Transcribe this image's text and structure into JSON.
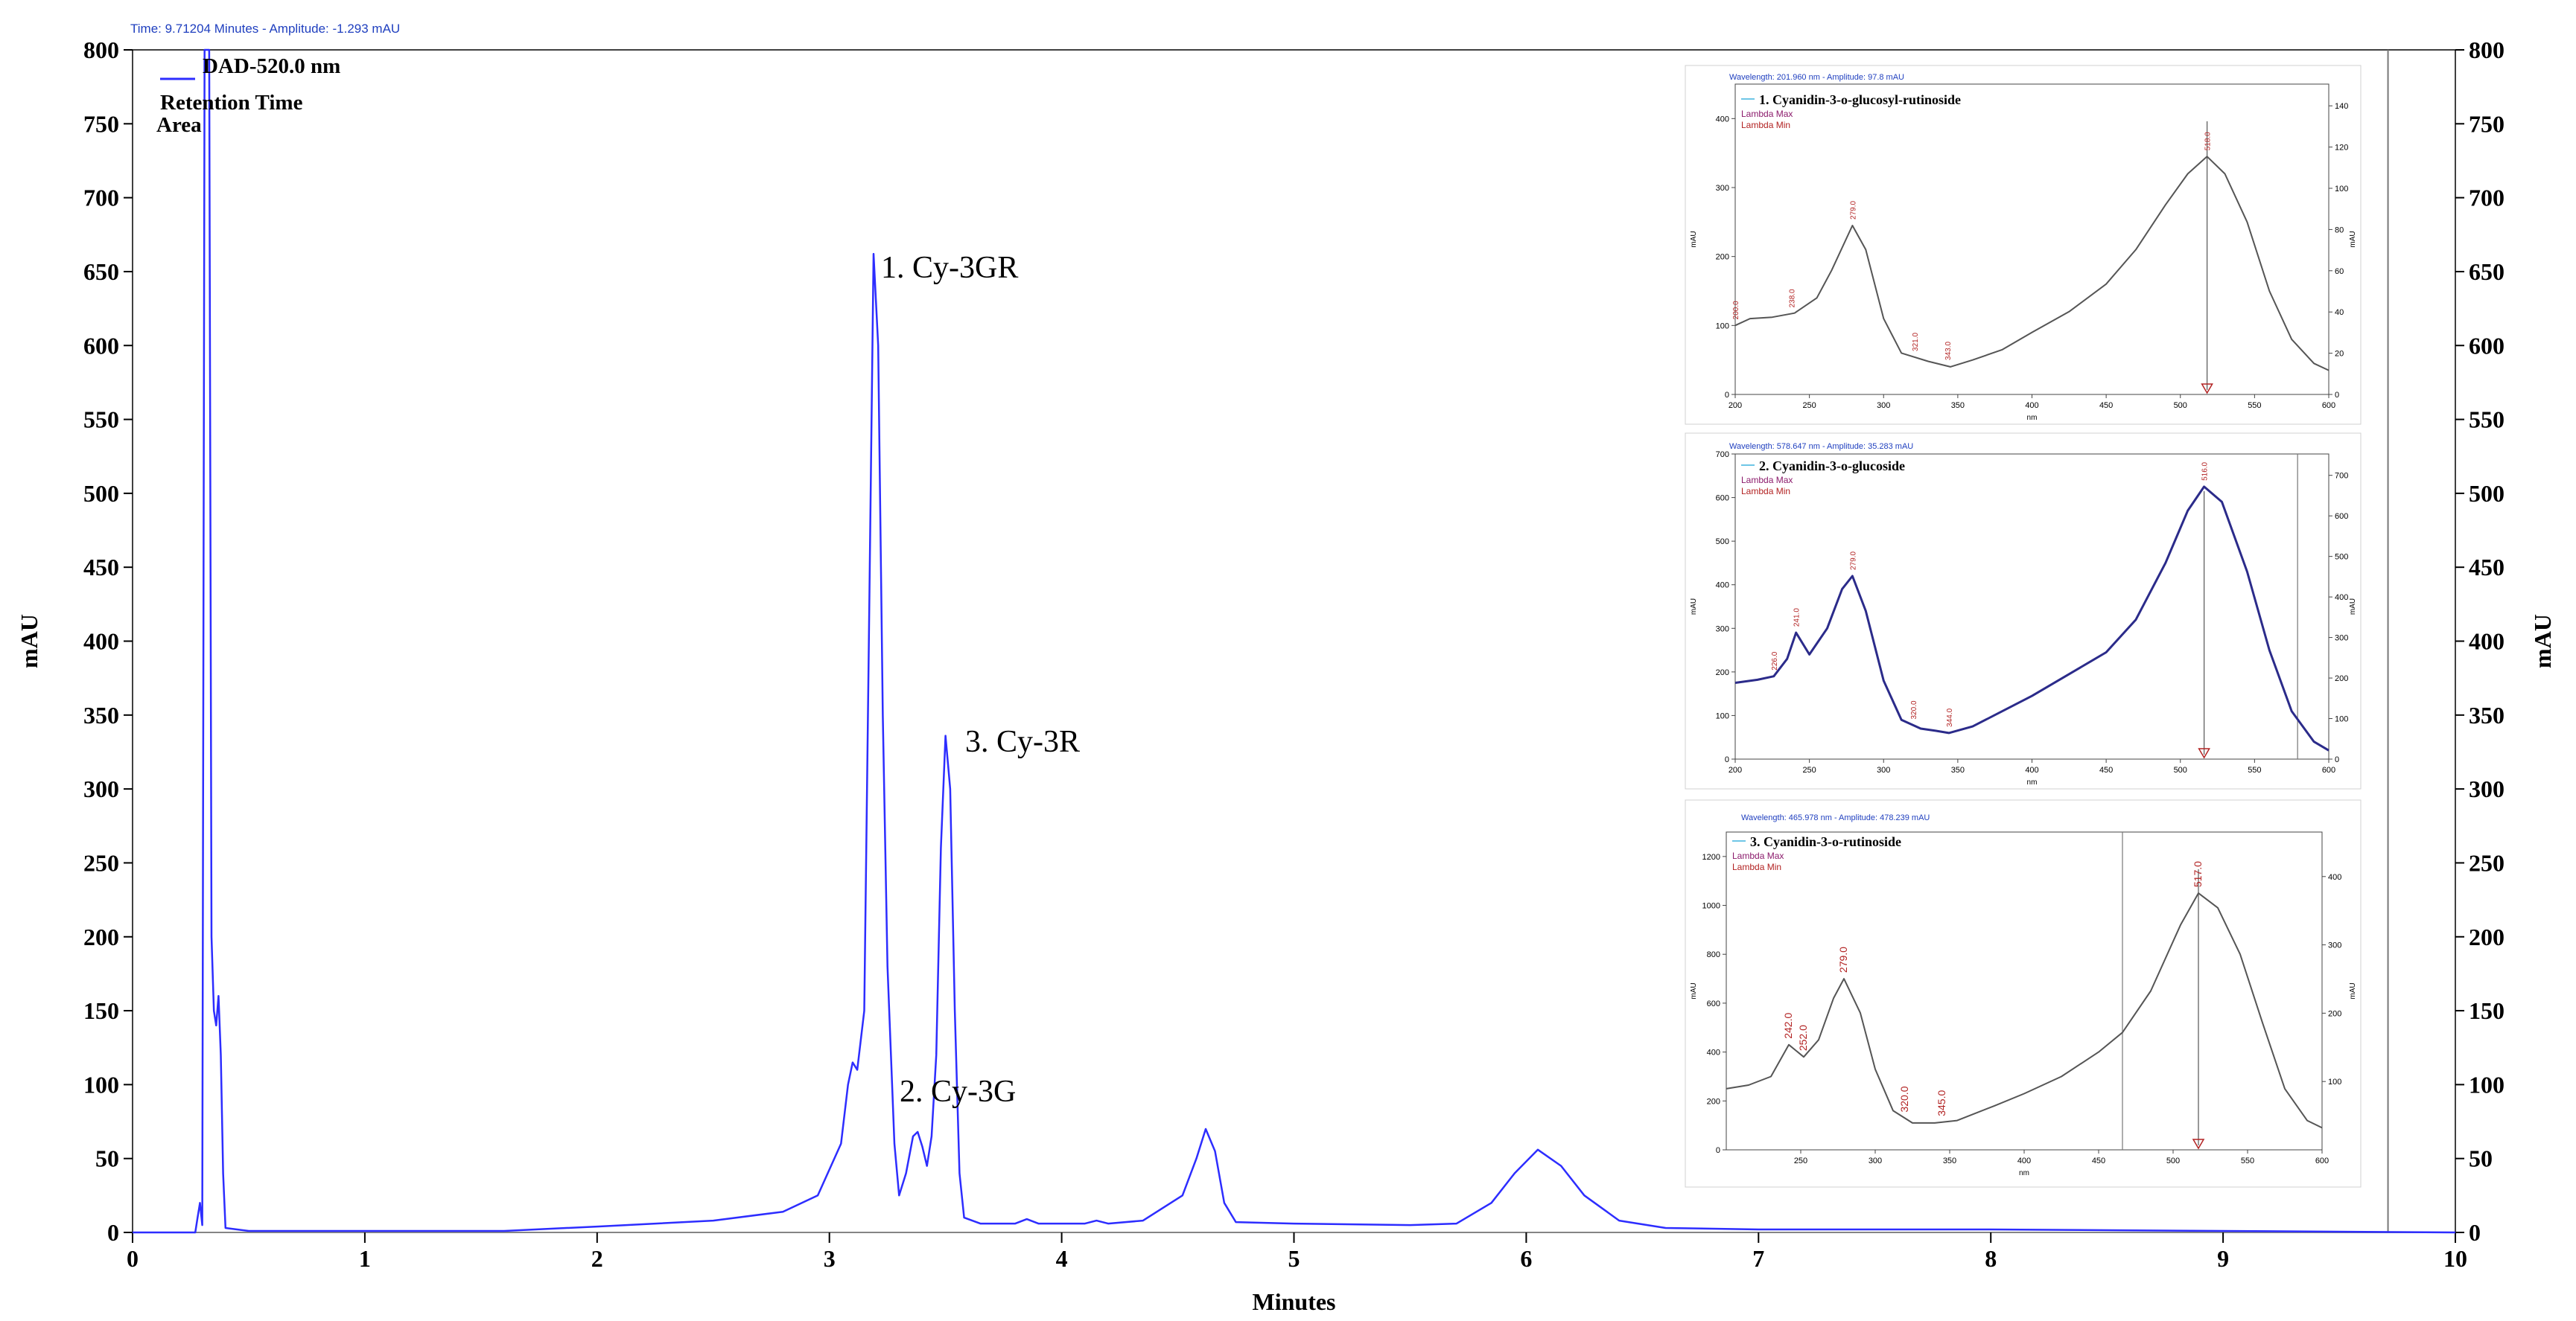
{
  "header": {
    "status": "Time:  9.71204 Minutes - Amplitude:  -1.293 mAU"
  },
  "legend": {
    "series": "DAD-520.0 nm",
    "line1": "Retention Time",
    "line2": "Area"
  },
  "colors": {
    "trace": "#2d2dff",
    "axis": "#000000",
    "inset_trace": "#555555",
    "inset_trace2": "#2b2b8a",
    "lambda": "#b22222",
    "header_text": "#1f3fbf"
  },
  "chart_data": {
    "type": "line",
    "xlabel": "Minutes",
    "ylabel": "mAU",
    "xlim": [
      0,
      10
    ],
    "ylim": [
      0,
      800
    ],
    "x_ticks": [
      "0",
      "1",
      "2",
      "3",
      "4",
      "5",
      "6",
      "7",
      "8",
      "9",
      "10"
    ],
    "y_ticks": [
      "0",
      "50",
      "100",
      "150",
      "200",
      "250",
      "300",
      "350",
      "400",
      "450",
      "500",
      "550",
      "600",
      "650",
      "700",
      "750",
      "800"
    ],
    "cursor_x": 9.71,
    "series": [
      {
        "name": "DAD-520.0 nm",
        "points": [
          [
            0,
            0
          ],
          [
            0.27,
            0
          ],
          [
            0.28,
            10
          ],
          [
            0.29,
            20
          ],
          [
            0.3,
            5
          ],
          [
            0.31,
            800
          ],
          [
            0.33,
            800
          ],
          [
            0.34,
            200
          ],
          [
            0.35,
            150
          ],
          [
            0.36,
            140
          ],
          [
            0.37,
            160
          ],
          [
            0.38,
            120
          ],
          [
            0.39,
            40
          ],
          [
            0.4,
            3
          ],
          [
            0.5,
            1
          ],
          [
            1,
            1
          ],
          [
            1.6,
            1
          ],
          [
            2.0,
            4
          ],
          [
            2.5,
            8
          ],
          [
            2.8,
            14
          ],
          [
            2.95,
            25
          ],
          [
            3.05,
            60
          ],
          [
            3.08,
            100
          ],
          [
            3.1,
            115
          ],
          [
            3.12,
            110
          ],
          [
            3.15,
            150
          ],
          [
            3.17,
            400
          ],
          [
            3.19,
            662
          ],
          [
            3.21,
            600
          ],
          [
            3.23,
            350
          ],
          [
            3.25,
            180
          ],
          [
            3.28,
            60
          ],
          [
            3.3,
            25
          ],
          [
            3.33,
            40
          ],
          [
            3.36,
            65
          ],
          [
            3.38,
            68
          ],
          [
            3.4,
            58
          ],
          [
            3.42,
            45
          ],
          [
            3.44,
            65
          ],
          [
            3.46,
            120
          ],
          [
            3.48,
            260
          ],
          [
            3.5,
            336
          ],
          [
            3.52,
            300
          ],
          [
            3.54,
            150
          ],
          [
            3.56,
            40
          ],
          [
            3.58,
            10
          ],
          [
            3.65,
            6
          ],
          [
            3.8,
            6
          ],
          [
            3.85,
            9
          ],
          [
            3.9,
            6
          ],
          [
            4.1,
            6
          ],
          [
            4.15,
            8
          ],
          [
            4.2,
            6
          ],
          [
            4.35,
            8
          ],
          [
            4.45,
            18
          ],
          [
            4.52,
            25
          ],
          [
            4.58,
            50
          ],
          [
            4.62,
            70
          ],
          [
            4.66,
            55
          ],
          [
            4.7,
            20
          ],
          [
            4.75,
            7
          ],
          [
            5.0,
            6
          ],
          [
            5.5,
            5
          ],
          [
            5.7,
            6
          ],
          [
            5.85,
            20
          ],
          [
            5.95,
            40
          ],
          [
            6.05,
            56
          ],
          [
            6.15,
            45
          ],
          [
            6.25,
            25
          ],
          [
            6.4,
            8
          ],
          [
            6.6,
            3
          ],
          [
            7,
            2
          ],
          [
            8,
            2
          ],
          [
            9,
            1
          ],
          [
            10,
            0
          ]
        ]
      }
    ],
    "annotations": [
      {
        "label": "1. Cy-3GR",
        "x": 3.2,
        "y": 662
      },
      {
        "label": "2. Cy-3G",
        "x": 3.38,
        "y": 70
      },
      {
        "label": "3. Cy-3R",
        "x": 3.5,
        "y": 336
      }
    ],
    "insets": [
      {
        "header": "Wavelength:  201.960 nm - Amplitude:  97.8 mAU",
        "title": "1. Cyanidin-3-o-glucosyl-rutinoside",
        "legend_max": "Lambda Max",
        "legend_min": "Lambda Min",
        "xlabel": "nm",
        "ylabel_left": "mAU",
        "ylabel_right": "mAU",
        "xlim": [
          200,
          600
        ],
        "ylim": [
          0,
          450
        ],
        "x_ticks": [
          "200",
          "250",
          "300",
          "350",
          "400",
          "450",
          "500",
          "550",
          "600"
        ],
        "y_ticks_left": [
          "0",
          "100",
          "200",
          "300",
          "400"
        ],
        "y_ticks_right": [
          "0",
          "20",
          "40",
          "60",
          "80",
          "100",
          "120",
          "140"
        ],
        "cursor_x": 518,
        "peaks": [
          {
            "x": 200.0,
            "label": "200.0"
          },
          {
            "x": 238.0,
            "label": "238.0"
          },
          {
            "x": 279.0,
            "label": "279.0"
          },
          {
            "x": 321.0,
            "label": "321.0"
          },
          {
            "x": 343.0,
            "label": "343.0"
          },
          {
            "x": 518.0,
            "label": "518.0"
          }
        ],
        "points": [
          [
            200,
            100
          ],
          [
            210,
            110
          ],
          [
            225,
            112
          ],
          [
            240,
            118
          ],
          [
            255,
            140
          ],
          [
            265,
            180
          ],
          [
            279,
            245
          ],
          [
            288,
            210
          ],
          [
            300,
            110
          ],
          [
            312,
            60
          ],
          [
            330,
            48
          ],
          [
            345,
            40
          ],
          [
            360,
            50
          ],
          [
            380,
            65
          ],
          [
            400,
            90
          ],
          [
            425,
            120
          ],
          [
            450,
            160
          ],
          [
            470,
            210
          ],
          [
            490,
            275
          ],
          [
            505,
            320
          ],
          [
            518,
            345
          ],
          [
            530,
            320
          ],
          [
            545,
            250
          ],
          [
            560,
            150
          ],
          [
            575,
            80
          ],
          [
            590,
            45
          ],
          [
            600,
            35
          ]
        ]
      },
      {
        "header": "Wavelength:  578.647 nm - Amplitude:  35.283 mAU",
        "title": "2. Cyanidin-3-o-glucoside",
        "legend_max": "Lambda Max",
        "legend_min": "Lambda Min",
        "xlabel": "nm",
        "ylabel_left": "mAU",
        "ylabel_right": "mAU",
        "xlim": [
          200,
          600
        ],
        "ylim": [
          0,
          700
        ],
        "x_ticks": [
          "200",
          "250",
          "300",
          "350",
          "400",
          "450",
          "500",
          "550",
          "600"
        ],
        "y_ticks_left": [
          "0",
          "100",
          "200",
          "300",
          "400",
          "500",
          "600",
          "700"
        ],
        "y_ticks_right": [
          "0",
          "100",
          "200",
          "300",
          "400",
          "500",
          "600",
          "700"
        ],
        "cursor_x": 516,
        "cursor2_x": 579,
        "peaks": [
          {
            "x": 226.0,
            "label": "226.0"
          },
          {
            "x": 241.0,
            "label": "241.0"
          },
          {
            "x": 279.0,
            "label": "279.0"
          },
          {
            "x": 320.0,
            "label": "320.0"
          },
          {
            "x": 344.0,
            "label": "344.0"
          },
          {
            "x": 516.0,
            "label": "516.0"
          }
        ],
        "points": [
          [
            200,
            175
          ],
          [
            215,
            182
          ],
          [
            226,
            190
          ],
          [
            235,
            230
          ],
          [
            241,
            290
          ],
          [
            250,
            240
          ],
          [
            262,
            300
          ],
          [
            272,
            390
          ],
          [
            279,
            420
          ],
          [
            288,
            340
          ],
          [
            300,
            180
          ],
          [
            312,
            90
          ],
          [
            325,
            70
          ],
          [
            335,
            65
          ],
          [
            344,
            60
          ],
          [
            360,
            75
          ],
          [
            380,
            110
          ],
          [
            400,
            145
          ],
          [
            425,
            195
          ],
          [
            450,
            245
          ],
          [
            470,
            320
          ],
          [
            490,
            450
          ],
          [
            505,
            570
          ],
          [
            516,
            625
          ],
          [
            528,
            590
          ],
          [
            545,
            430
          ],
          [
            560,
            250
          ],
          [
            575,
            110
          ],
          [
            590,
            40
          ],
          [
            600,
            20
          ]
        ]
      },
      {
        "header": "Wavelength:  465.978 nm - Amplitude:  478.239 mAU",
        "title": "3. Cyanidin-3-o-rutinoside",
        "legend_max": "Lambda Max",
        "legend_min": "Lambda Min",
        "xlabel": "nm",
        "ylabel_left": "mAU",
        "ylabel_right": "mAU",
        "xlim": [
          200,
          600
        ],
        "ylim": [
          0,
          1300
        ],
        "x_ticks": [
          "250",
          "300",
          "350",
          "400",
          "450",
          "500",
          "550",
          "600"
        ],
        "y_ticks_left": [
          "0",
          "200",
          "400",
          "600",
          "800",
          "1000",
          "1200"
        ],
        "y_ticks_right": [
          "100",
          "200",
          "300",
          "400"
        ],
        "cursor_x": 517,
        "cursor2_x": 466,
        "peaks": [
          {
            "x": 242.0,
            "label": "242.0"
          },
          {
            "x": 252.0,
            "label": "252.0"
          },
          {
            "x": 279.0,
            "label": "279.0"
          },
          {
            "x": 320.0,
            "label": "320.0"
          },
          {
            "x": 345.0,
            "label": "345.0"
          },
          {
            "x": 517.0,
            "label": "517.0"
          }
        ],
        "points": [
          [
            200,
            250
          ],
          [
            215,
            265
          ],
          [
            230,
            300
          ],
          [
            242,
            430
          ],
          [
            252,
            380
          ],
          [
            262,
            450
          ],
          [
            272,
            620
          ],
          [
            279,
            700
          ],
          [
            290,
            560
          ],
          [
            300,
            330
          ],
          [
            312,
            160
          ],
          [
            325,
            110
          ],
          [
            340,
            110
          ],
          [
            355,
            120
          ],
          [
            380,
            180
          ],
          [
            400,
            230
          ],
          [
            425,
            300
          ],
          [
            450,
            400
          ],
          [
            466,
            480
          ],
          [
            485,
            650
          ],
          [
            505,
            920
          ],
          [
            517,
            1050
          ],
          [
            530,
            990
          ],
          [
            545,
            800
          ],
          [
            560,
            520
          ],
          [
            575,
            250
          ],
          [
            590,
            120
          ],
          [
            600,
            90
          ]
        ]
      }
    ]
  }
}
